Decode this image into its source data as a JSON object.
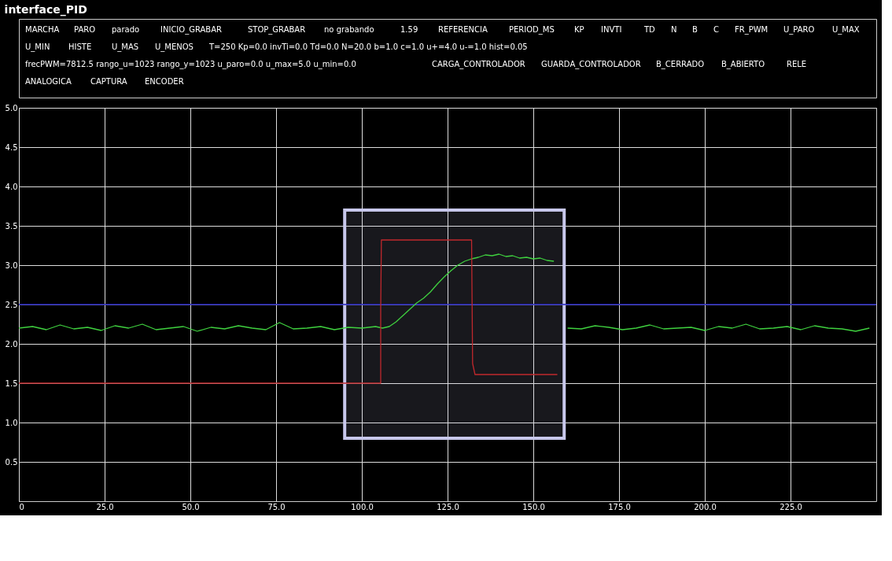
{
  "chart_data": {
    "type": "line",
    "title": "interface_PID",
    "annotations": [
      "MARCHA",
      "PARO",
      "parado",
      "INICIO_GRABAR",
      "STOP_GRABAR",
      "no grabando",
      "1.59",
      "REFERENCIA",
      "PERIOD_MS",
      "KP",
      "INVTI",
      "TD",
      "N",
      "B",
      "C",
      "FR_PWM",
      "U_PARO",
      "U_MAX",
      "U_MIN",
      "HISTE",
      "U_MAS",
      "U_MENOS",
      "T=250  Kp=0.0  invTi=0.0  Td=0.0  N=20.0  b=1.0  c=1.0   u+=4.0  u-=1.0  hist=0.05",
      "frecPWM=7812.5 rango_u=1023 rango_y=1023 u_paro=0.0 u_max=5.0 u_min=0.0",
      "CARGA_CONTROLADOR",
      "GUARDA_CONTROLADOR",
      "B_CERRADO",
      "B_ABIERTO",
      "RELE",
      "ANALOGICA",
      "CAPTURA",
      "ENCODER"
    ],
    "series": [
      {
        "color": "#3fd13f",
        "x": [
          0,
          4,
          8,
          12,
          16,
          20,
          24,
          28,
          32,
          36,
          40,
          44,
          48,
          52,
          56,
          60,
          64,
          68,
          72,
          76,
          80,
          84,
          88,
          92,
          96,
          100,
          104,
          106,
          108,
          110,
          112,
          114,
          116,
          118,
          120,
          122,
          124,
          126,
          128,
          130,
          132,
          134,
          136,
          138,
          140,
          142,
          144,
          146,
          148,
          150,
          152,
          154,
          156,
          158,
          160,
          164,
          168,
          172,
          176,
          180,
          184,
          188,
          192,
          196,
          200,
          204,
          208,
          212,
          216,
          220,
          224,
          228,
          232,
          236,
          240,
          244,
          248
        ],
        "values": [
          2.2,
          2.22,
          2.18,
          2.24,
          2.19,
          2.21,
          2.17,
          2.23,
          2.2,
          2.25,
          2.18,
          2.2,
          2.22,
          2.16,
          2.21,
          2.19,
          2.23,
          2.2,
          2.18,
          2.27,
          2.19,
          2.2,
          2.22,
          2.18,
          2.21,
          2.2,
          2.22,
          2.2,
          2.22,
          2.28,
          2.36,
          2.44,
          2.52,
          2.58,
          2.66,
          2.76,
          2.85,
          2.93,
          3.0,
          3.05,
          3.08,
          3.1,
          3.13,
          3.12,
          3.14,
          3.11,
          3.12,
          3.09,
          3.1,
          3.08,
          3.09,
          3.06,
          3.05,
          null,
          2.2,
          2.19,
          2.23,
          2.21,
          2.18,
          2.2,
          2.24,
          2.19,
          2.2,
          2.21,
          2.17,
          2.22,
          2.2,
          2.25,
          2.19,
          2.2,
          2.22,
          2.18,
          2.23,
          2.2,
          2.19,
          2.16,
          2.2
        ]
      },
      {
        "color": "#c0282d",
        "x": [
          0,
          105.5,
          105.5,
          105.7,
          132,
          132.3,
          133,
          157
        ],
        "values": [
          1.5,
          1.5,
          2.45,
          3.32,
          3.32,
          1.75,
          1.61,
          1.61
        ]
      }
    ],
    "xlim": [
      0,
      250
    ],
    "xticks": [
      0,
      {
        "value": 25,
        "label": "25.0"
      },
      {
        "value": 50,
        "label": "50.0"
      },
      {
        "value": 75,
        "label": "75.0"
      },
      {
        "value": 100,
        "label": "100.0"
      },
      {
        "value": 125,
        "label": "125.0"
      },
      {
        "value": 150,
        "label": "150.0"
      },
      {
        "value": 175,
        "label": "175.0"
      },
      {
        "value": 200,
        "label": "200.0"
      },
      {
        "value": 225,
        "label": "225.0"
      }
    ],
    "ylim": [
      0,
      5
    ],
    "yticks": [
      {
        "value": 0.5,
        "label": "0.5"
      },
      {
        "value": 1,
        "label": "1.0"
      },
      {
        "value": 1.5,
        "label": "1.5"
      },
      {
        "value": 2,
        "label": "2.0"
      },
      {
        "value": 2.5,
        "label": "2.5"
      },
      {
        "value": 3,
        "label": "3.0"
      },
      {
        "value": 3.5,
        "label": "3.5"
      },
      {
        "value": 4,
        "label": "4.0"
      },
      {
        "value": 4.5,
        "label": "4.5"
      },
      {
        "value": 5,
        "label": "5.0"
      }
    ],
    "ref_lines": [
      {
        "axis": "y",
        "value": 2.5,
        "color": "#2020c0"
      }
    ],
    "bands": [
      {
        "axis": "x",
        "from": 95,
        "to": 159,
        "color": "#c8c8ec"
      }
    ],
    "grid": true,
    "marker": "none",
    "line_style": "solid"
  }
}
